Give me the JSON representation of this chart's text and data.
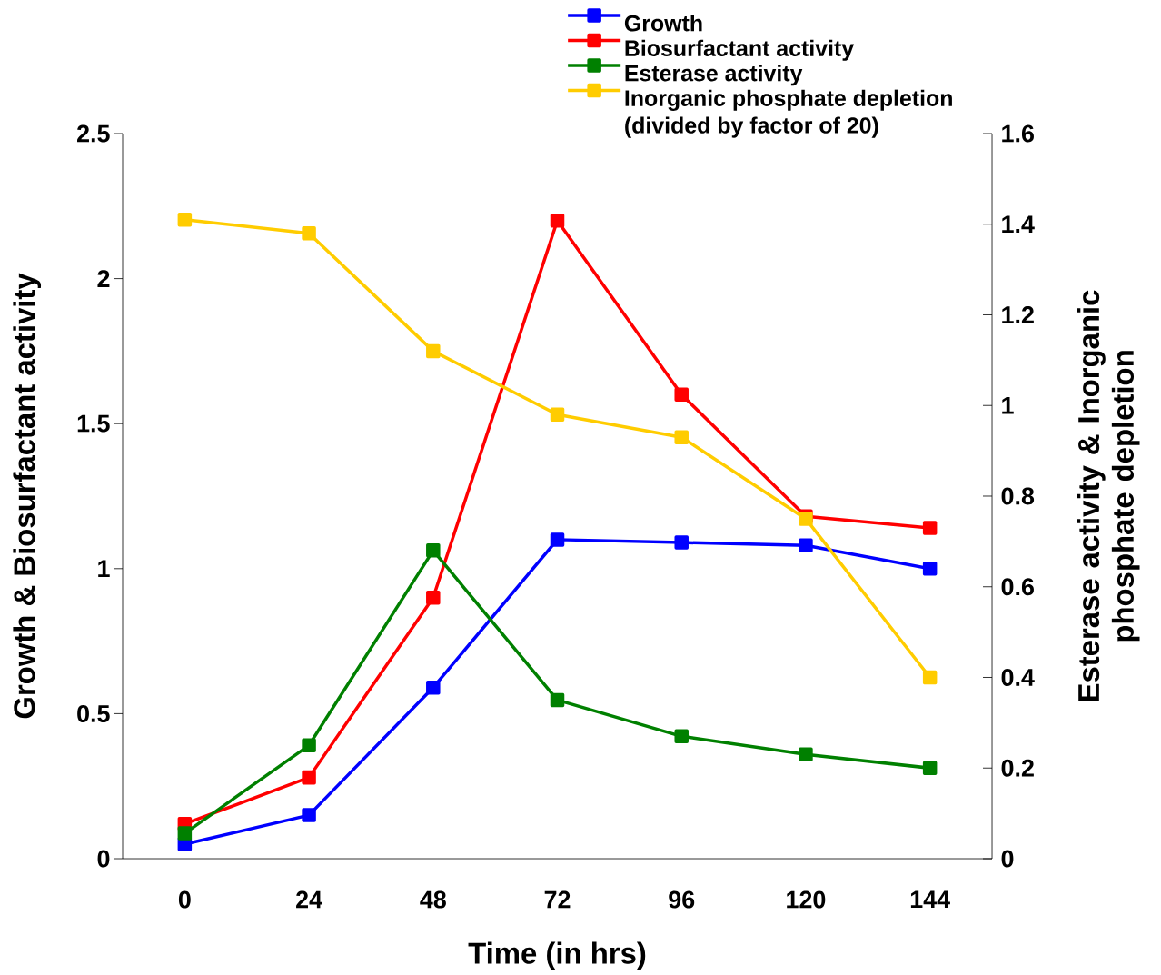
{
  "chart_data": {
    "type": "line",
    "xlabel": "Time (in hrs)",
    "ylabel": "Growth & Biosurfactant activity",
    "y2label": "Esterase activity & Inorganic phosphate depletion",
    "categories": [
      "0",
      "24",
      "48",
      "72",
      "96",
      "120",
      "144"
    ],
    "series": [
      {
        "name": "Growth",
        "color": "#0000ff",
        "values": [
          0.05,
          0.15,
          0.59,
          1.1,
          1.09,
          1.08,
          1.0
        ]
      },
      {
        "name": "Biosurfactant activity",
        "color": "#ff0000",
        "values": [
          0.12,
          0.28,
          0.9,
          2.2,
          1.6,
          1.18,
          1.14
        ]
      },
      {
        "name": "Esterase activity",
        "color": "#008000",
        "axis": "y2",
        "values": [
          0.056,
          0.25,
          0.68,
          0.35,
          0.27,
          0.23,
          0.2
        ]
      },
      {
        "name": "Inorganic phosphate depletion (divided by factor of 20)",
        "color": "#ffcc00",
        "axis": "y2",
        "values": [
          1.41,
          1.38,
          1.12,
          0.98,
          0.93,
          0.75,
          0.4
        ]
      }
    ],
    "ylim": [
      0,
      2.5
    ],
    "yticks": [
      0,
      0.5,
      1,
      1.5,
      2,
      2.5
    ],
    "y2lim": [
      0,
      1.6
    ],
    "y2ticks": [
      0,
      0.2,
      0.4,
      0.6,
      0.8,
      1,
      1.2,
      1.4,
      1.6
    ],
    "legend": "top",
    "marker": "square",
    "line_style": "solid"
  }
}
